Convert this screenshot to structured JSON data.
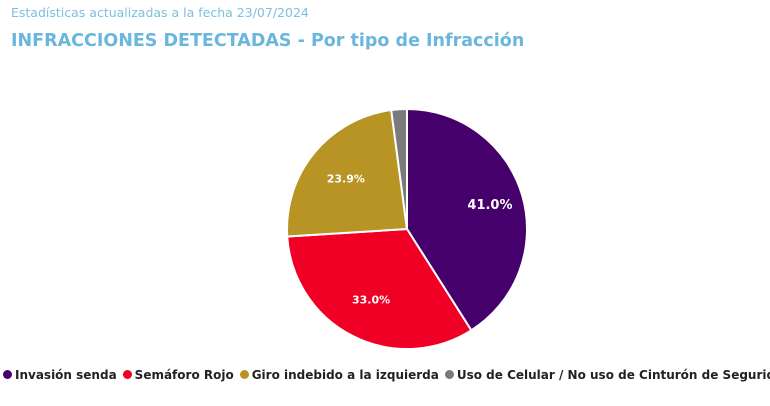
{
  "header": {
    "subtitle": "Estadísticas actualizadas a la fecha 23/07/2024",
    "title": "INFRACCIONES DETECTADAS - Por tipo de Infracción"
  },
  "chart_data": {
    "type": "pie",
    "title": "INFRACCIONES DETECTADAS - Por tipo de Infracción",
    "categories": [
      "Invasión senda",
      "Semáforo Rojo",
      "Giro indebido a la izquierda",
      "Uso de Celular / No uso de Cinturón de Seguridad"
    ],
    "values": [
      41.0,
      33.0,
      23.9,
      2.1
    ],
    "labels": [
      "41.0%",
      "33.0%",
      "23.9%",
      ""
    ],
    "colors": [
      "#45006b",
      "#f00024",
      "#b89425",
      "#7a7a7a"
    ],
    "legend": "bottom"
  }
}
